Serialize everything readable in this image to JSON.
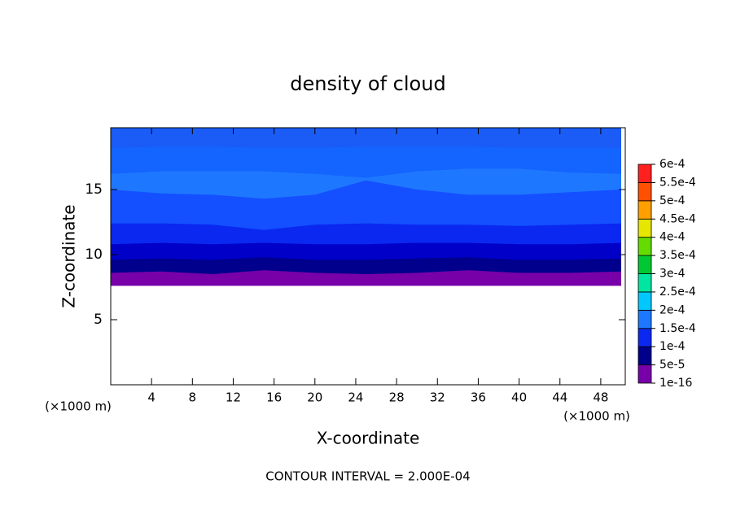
{
  "chart_data": {
    "type": "contour",
    "title": "density of cloud",
    "x_label": "X-coordinate",
    "y_label": "Z-coordinate",
    "x_unit": "(×1000 m)",
    "y_unit": "(×1000 m)",
    "note": "CONTOUR INTERVAL = 2.000E-04",
    "xlim": [
      0,
      50.4
    ],
    "ylim": [
      0,
      19.75
    ],
    "xticks": [
      4,
      8,
      12,
      16,
      20,
      24,
      28,
      32,
      36,
      40,
      44,
      48
    ],
    "yticks": [
      5,
      10,
      15
    ],
    "x": [
      0,
      5,
      10,
      15,
      20,
      25,
      30,
      35,
      40,
      45,
      50
    ],
    "bands": [
      {
        "color": "#7800a8",
        "values": [
          7.6,
          7.6,
          7.6,
          7.6,
          7.6,
          7.6,
          7.6,
          7.6,
          7.6,
          7.6,
          7.6
        ]
      },
      {
        "color": "#00008c",
        "values": [
          8.6,
          8.7,
          8.5,
          8.8,
          8.6,
          8.5,
          8.6,
          8.8,
          8.6,
          8.6,
          8.7
        ]
      },
      {
        "color": "#0000c8",
        "values": [
          9.6,
          9.7,
          9.6,
          9.8,
          9.6,
          9.6,
          9.7,
          9.8,
          9.6,
          9.6,
          9.7
        ]
      },
      {
        "color": "#0a28f0",
        "values": [
          10.8,
          10.9,
          10.8,
          10.9,
          10.8,
          10.8,
          10.9,
          10.9,
          10.8,
          10.8,
          10.9
        ]
      },
      {
        "color": "#1450ff",
        "values": [
          12.4,
          12.4,
          12.3,
          11.9,
          12.3,
          12.4,
          12.3,
          12.3,
          12.2,
          12.3,
          12.4
        ]
      },
      {
        "color": "#1e78ff",
        "values": [
          15.0,
          14.7,
          14.6,
          14.3,
          14.6,
          15.7,
          15.0,
          14.6,
          14.6,
          14.8,
          15.0
        ]
      },
      {
        "color": "#1464ff",
        "values": [
          16.2,
          16.4,
          16.4,
          16.4,
          16.2,
          15.9,
          16.4,
          16.6,
          16.6,
          16.3,
          16.2
        ]
      },
      {
        "color": "#1a5cf5",
        "values": [
          18.2,
          18.3,
          18.3,
          18.2,
          18.2,
          18.3,
          18.3,
          18.3,
          18.2,
          18.2,
          18.2
        ]
      }
    ],
    "colorbar": {
      "ticks": [
        {
          "value": 1e-16,
          "label": "1e-16"
        },
        {
          "value": 5e-05,
          "label": "5e-5"
        },
        {
          "value": 0.0001,
          "label": "1e-4"
        },
        {
          "value": 0.00015,
          "label": "1.5e-4"
        },
        {
          "value": 0.0002,
          "label": "2e-4"
        },
        {
          "value": 0.00025,
          "label": "2.5e-4"
        },
        {
          "value": 0.0003,
          "label": "3e-4"
        },
        {
          "value": 0.00035,
          "label": "3.5e-4"
        },
        {
          "value": 0.0004,
          "label": "4e-4"
        },
        {
          "value": 0.00045,
          "label": "4.5e-4"
        },
        {
          "value": 0.0005,
          "label": "5e-4"
        },
        {
          "value": 0.00055,
          "label": "5.5e-4"
        },
        {
          "value": 0.0006,
          "label": "6e-4"
        }
      ],
      "colors": [
        "#7800a8",
        "#00008c",
        "#0a28f0",
        "#1e78ff",
        "#00c8ff",
        "#00e6a0",
        "#00c832",
        "#64dc00",
        "#e6e600",
        "#ffa000",
        "#ff5000",
        "#ff2020",
        "#ff8c8c"
      ]
    }
  }
}
